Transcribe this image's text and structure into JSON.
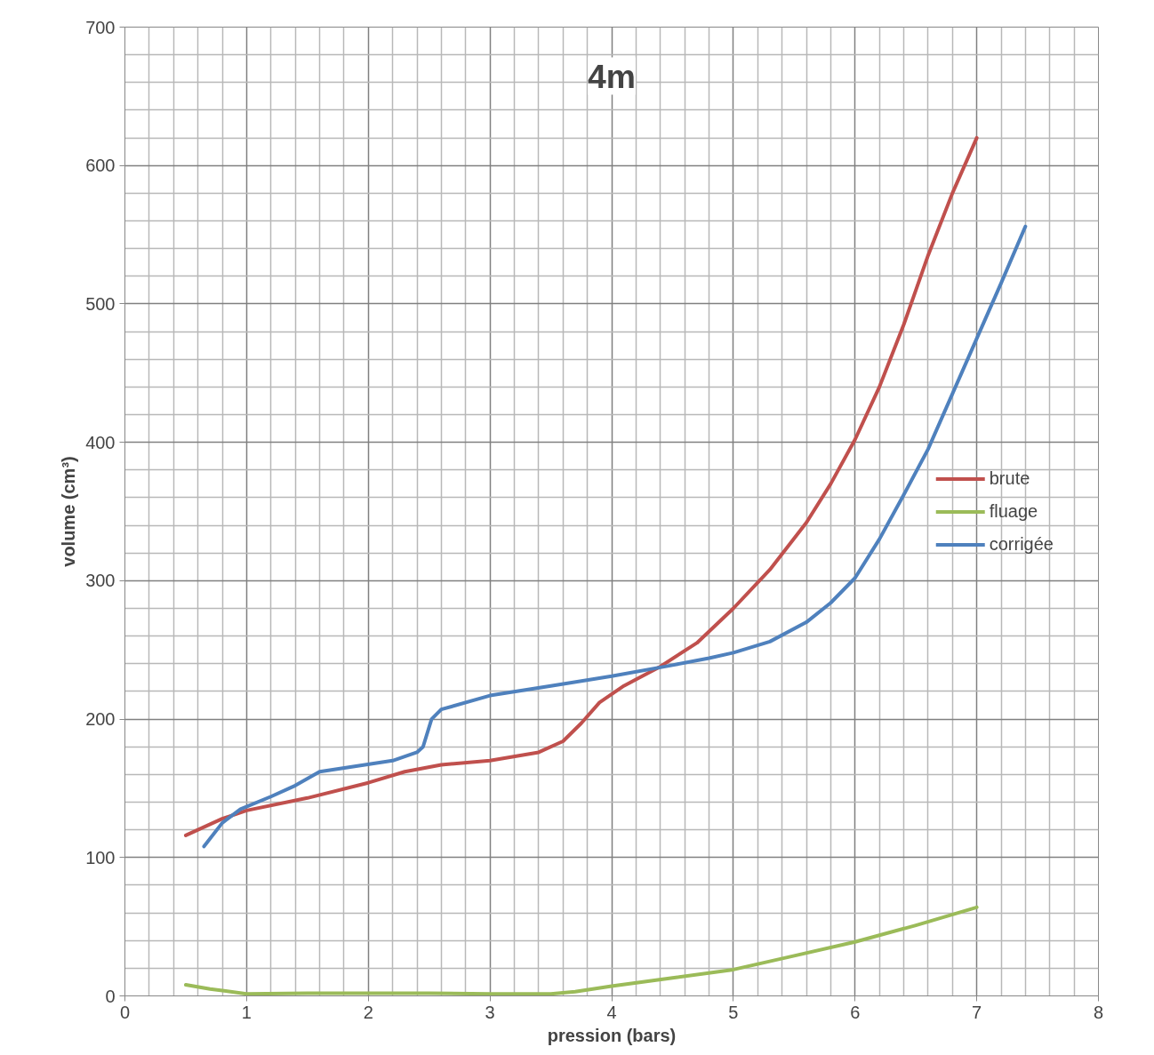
{
  "chart_data": {
    "type": "line",
    "title": "4m",
    "xlabel": "pression (bars)",
    "ylabel": "volume (cm³)",
    "xlim": [
      0,
      8
    ],
    "ylim": [
      0,
      700
    ],
    "xticks": [
      0,
      1,
      2,
      3,
      4,
      5,
      6,
      7,
      8
    ],
    "yticks": [
      0,
      100,
      200,
      300,
      400,
      500,
      600,
      700
    ],
    "grid": true,
    "legend": "right",
    "marker": "none",
    "line_style": "solid",
    "series": [
      {
        "name": "brute",
        "color": "#c0504d",
        "x": [
          0.5,
          0.8,
          1.0,
          1.5,
          2.0,
          2.3,
          2.6,
          3.0,
          3.4,
          3.6,
          3.75,
          3.9,
          4.1,
          4.4,
          4.7,
          5.0,
          5.3,
          5.6,
          5.8,
          6.0,
          6.2,
          6.4,
          6.6,
          6.8,
          7.0
        ],
        "values": [
          116,
          128,
          134,
          143,
          154,
          162,
          167,
          170,
          176,
          184,
          197,
          212,
          224,
          238,
          255,
          280,
          308,
          342,
          370,
          402,
          440,
          485,
          535,
          580,
          620
        ]
      },
      {
        "name": "fluage",
        "color": "#9bbb59",
        "x": [
          0.5,
          0.7,
          1.0,
          1.5,
          2.0,
          2.5,
          3.0,
          3.5,
          3.7,
          4.0,
          4.5,
          5.0,
          5.5,
          6.0,
          6.5,
          7.0
        ],
        "values": [
          8,
          5,
          1.5,
          2,
          2,
          2,
          1.5,
          1.5,
          3,
          7,
          13,
          19,
          29,
          39,
          51,
          64
        ]
      },
      {
        "name": "corrigée",
        "color": "#4f81bd",
        "x": [
          0.65,
          0.8,
          0.95,
          1.2,
          1.4,
          1.6,
          1.9,
          2.2,
          2.4,
          2.45,
          2.52,
          2.6,
          3.0,
          3.5,
          4.0,
          4.5,
          4.8,
          5.0,
          5.3,
          5.6,
          5.8,
          6.0,
          6.2,
          6.4,
          6.6,
          6.8,
          7.0,
          7.2,
          7.4
        ],
        "values": [
          108,
          125,
          135,
          144,
          152,
          162,
          166,
          170,
          176,
          180,
          200,
          207,
          217,
          224,
          231,
          239,
          244,
          248,
          256,
          270,
          284,
          302,
          330,
          362,
          395,
          435,
          475,
          515,
          556
        ]
      }
    ]
  }
}
